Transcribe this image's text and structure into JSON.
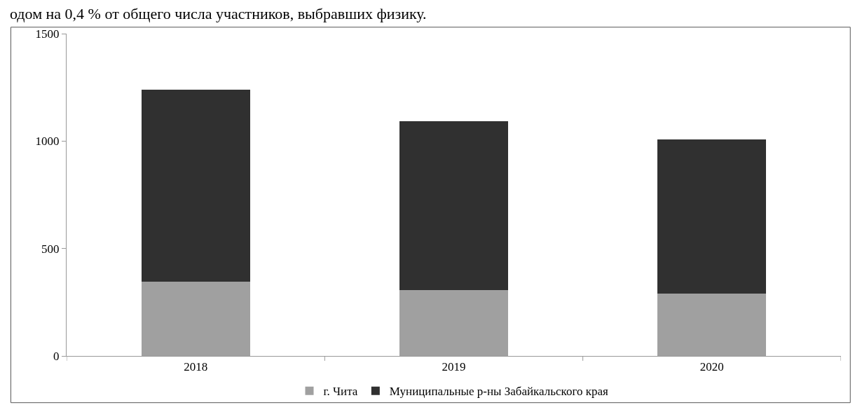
{
  "chart_data": {
    "type": "bar",
    "stacked": true,
    "annotations": [
      "одом на 0,4 % от общего числа участников, выбравших физику."
    ],
    "categories": [
      "2018",
      "2019",
      "2020"
    ],
    "series": [
      {
        "name": "г. Чита",
        "color": "#a0a0a0",
        "values": [
          347,
          308,
          291
        ]
      },
      {
        "name": "Муниципальные р-ны Забайкальского края",
        "color": "#303030",
        "values": [
          891,
          786,
          718
        ]
      }
    ],
    "ylim": [
      0,
      1500
    ],
    "yticks": [
      0,
      500,
      1000,
      1500
    ],
    "legend": "bottom"
  }
}
